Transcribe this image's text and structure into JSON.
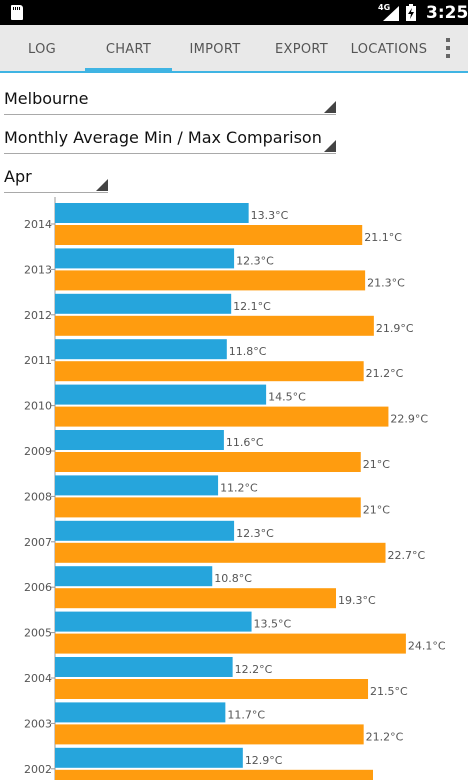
{
  "status_bar": {
    "network": "4G",
    "time": "3:25"
  },
  "tabs": [
    {
      "label": "LOG",
      "active": false
    },
    {
      "label": "CHART",
      "active": true
    },
    {
      "label": "IMPORT",
      "active": false
    },
    {
      "label": "EXPORT",
      "active": false
    },
    {
      "label": "LOCATIONS",
      "active": false
    }
  ],
  "filters": {
    "location": "Melbourne",
    "chart_type": "Monthly Average Min / Max Comparison",
    "month": "Apr"
  },
  "colors": {
    "accent": "#3fb4e3",
    "min_bar": "#26a5dc",
    "max_bar": "#ff9c0f"
  },
  "chart_data": {
    "type": "bar",
    "orientation": "horizontal",
    "unit": "°C",
    "categories": [
      "2014",
      "2013",
      "2012",
      "2011",
      "2010",
      "2009",
      "2008",
      "2007",
      "2006",
      "2005",
      "2004",
      "2003",
      "2002"
    ],
    "series": [
      {
        "values": [
          13.3,
          12.3,
          12.1,
          11.8,
          14.5,
          11.6,
          11.2,
          12.3,
          10.8,
          13.5,
          12.2,
          11.7,
          12.9
        ],
        "labels": [
          "13.3°C",
          "12.3°C",
          "12.1°C",
          "11.8°C",
          "14.5°C",
          "11.6°C",
          "11.2°C",
          "12.3°C",
          "10.8°C",
          "13.5°C",
          "12.2°C",
          "11.7°C",
          "12.9°C"
        ]
      },
      {
        "values": [
          21.1,
          21.3,
          21.9,
          21.2,
          22.9,
          21,
          21,
          22.7,
          19.3,
          24.1,
          21.5,
          21.2,
          null
        ],
        "labels": [
          "21.1°C",
          "21.3°C",
          "21.9°C",
          "21.2°C",
          "22.9°C",
          "21°C",
          "21°C",
          "22.7°C",
          "19.3°C",
          "24.1°C",
          "21.5°C",
          "21.2°C",
          ""
        ]
      }
    ]
  }
}
